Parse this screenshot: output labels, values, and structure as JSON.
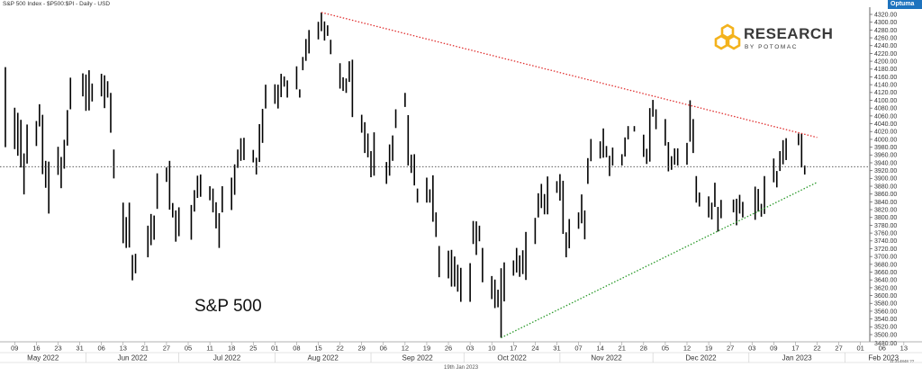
{
  "header": {
    "title": "S&P 500 Index - $P500:$PI - Daily - USD"
  },
  "brand_badge": "Optuma",
  "logo": {
    "main": "RESEARCH",
    "sub": "BY POTOMAC"
  },
  "chart_label": "S&P 500",
  "footer": {
    "date": "19th Jan 2023",
    "info": "11.314848 ??"
  },
  "colors": {
    "bars": "#000000",
    "resistance": "#e03030",
    "support": "#2a9a2a",
    "reference": "#444444",
    "logo_gold": "#f3b21c"
  },
  "chart_data": {
    "type": "ohlc",
    "title": "S&P 500 Index - $P500:$PI - Daily - USD",
    "ylim": [
      3500,
      4320
    ],
    "y_ticks": [
      "4320.00",
      "4300.00",
      "4280.00",
      "4260.00",
      "4240.00",
      "4220.00",
      "4200.00",
      "4180.00",
      "4160.00",
      "4140.00",
      "4120.00",
      "4100.00",
      "4080.00",
      "4060.00",
      "4040.00",
      "4020.00",
      "4000.00",
      "3980.00",
      "3960.00",
      "3940.00",
      "3920.00",
      "3900.00",
      "3880.00",
      "3860.00",
      "3840.00",
      "3820.00",
      "3800.00",
      "3780.00",
      "3760.00",
      "3740.00",
      "3720.00",
      "3700.00",
      "3680.00",
      "3660.00",
      "3640.00",
      "3620.00",
      "3600.00",
      "3580.00",
      "3560.00",
      "3540.00",
      "3520.00",
      "3500.00"
    ],
    "bottom_y_label": "3480.00",
    "x_day_labels": [
      "09",
      "16",
      "23",
      "31",
      "06",
      "13",
      "21",
      "27",
      "05",
      "11",
      "18",
      "25",
      "01",
      "08",
      "15",
      "22",
      "29",
      "06",
      "12",
      "19",
      "26",
      "03",
      "10",
      "17",
      "24",
      "31",
      "07",
      "14",
      "21",
      "28",
      "05",
      "12",
      "19",
      "27",
      "03",
      "09",
      "17",
      "22",
      "27",
      "01",
      "06",
      "13"
    ],
    "x_month_labels": [
      "May 2022",
      "Jun 2022",
      "Jul 2022",
      "Aug 2022",
      "Sep 2022",
      "Oct 2022",
      "Nov 2022",
      "Dec 2022",
      "Jan 2023",
      "Feb 2023"
    ],
    "bars": [
      {
        "date": "2022-05-06",
        "high": 4185,
        "low": 3980
      },
      {
        "date": "2022-05-09",
        "high": 4081,
        "low": 3975
      },
      {
        "date": "2022-05-10",
        "high": 4068,
        "low": 3958
      },
      {
        "date": "2022-05-11",
        "high": 4050,
        "low": 3928
      },
      {
        "date": "2022-05-12",
        "high": 3964,
        "low": 3859
      },
      {
        "date": "2022-05-13",
        "high": 4038,
        "low": 3938
      },
      {
        "date": "2022-05-16",
        "high": 4047,
        "low": 3983
      },
      {
        "date": "2022-05-17",
        "high": 4090,
        "low": 4033
      },
      {
        "date": "2022-05-18",
        "high": 4063,
        "low": 3911
      },
      {
        "date": "2022-05-19",
        "high": 3945,
        "low": 3876
      },
      {
        "date": "2022-05-20",
        "high": 3943,
        "low": 3810
      },
      {
        "date": "2022-05-23",
        "high": 3981,
        "low": 3909
      },
      {
        "date": "2022-05-24",
        "high": 3955,
        "low": 3875
      },
      {
        "date": "2022-05-25",
        "high": 3999,
        "low": 3925
      },
      {
        "date": "2022-05-26",
        "high": 4075,
        "low": 3984
      },
      {
        "date": "2022-05-27",
        "high": 4158,
        "low": 4077
      },
      {
        "date": "2022-05-31",
        "high": 4169,
        "low": 4110
      },
      {
        "date": "2022-06-01",
        "high": 4166,
        "low": 4073
      },
      {
        "date": "2022-06-02",
        "high": 4177,
        "low": 4074
      },
      {
        "date": "2022-06-03",
        "high": 4143,
        "low": 4097
      },
      {
        "date": "2022-06-06",
        "high": 4168,
        "low": 4110
      },
      {
        "date": "2022-06-07",
        "high": 4164,
        "low": 4080
      },
      {
        "date": "2022-06-08",
        "high": 4149,
        "low": 4107
      },
      {
        "date": "2022-06-09",
        "high": 4119,
        "low": 4017
      },
      {
        "date": "2022-06-10",
        "high": 3974,
        "low": 3900
      },
      {
        "date": "2022-06-13",
        "high": 3838,
        "low": 3734
      },
      {
        "date": "2022-06-14",
        "high": 3801,
        "low": 3722
      },
      {
        "date": "2022-06-15",
        "high": 3838,
        "low": 3723
      },
      {
        "date": "2022-06-16",
        "high": 3704,
        "low": 3639
      },
      {
        "date": "2022-06-17",
        "high": 3707,
        "low": 3657
      },
      {
        "date": "2022-06-21",
        "high": 3779,
        "low": 3698
      },
      {
        "date": "2022-06-22",
        "high": 3809,
        "low": 3729
      },
      {
        "date": "2022-06-23",
        "high": 3805,
        "low": 3743
      },
      {
        "date": "2022-06-24",
        "high": 3913,
        "low": 3822
      },
      {
        "date": "2022-06-27",
        "high": 3928,
        "low": 3891
      },
      {
        "date": "2022-06-28",
        "high": 3945,
        "low": 3820
      },
      {
        "date": "2022-06-29",
        "high": 3837,
        "low": 3800
      },
      {
        "date": "2022-06-30",
        "high": 3818,
        "low": 3738
      },
      {
        "date": "2022-07-01",
        "high": 3826,
        "low": 3752
      },
      {
        "date": "2022-07-05",
        "high": 3832,
        "low": 3743
      },
      {
        "date": "2022-07-06",
        "high": 3870,
        "low": 3815
      },
      {
        "date": "2022-07-07",
        "high": 3907,
        "low": 3850
      },
      {
        "date": "2022-07-08",
        "high": 3910,
        "low": 3853
      },
      {
        "date": "2022-07-11",
        "high": 3880,
        "low": 3844
      },
      {
        "date": "2022-07-12",
        "high": 3874,
        "low": 3813
      },
      {
        "date": "2022-07-13",
        "high": 3839,
        "low": 3772
      },
      {
        "date": "2022-07-14",
        "high": 3811,
        "low": 3722
      },
      {
        "date": "2022-07-15",
        "high": 3880,
        "low": 3813
      },
      {
        "date": "2022-07-18",
        "high": 3902,
        "low": 3819
      },
      {
        "date": "2022-07-19",
        "high": 3936,
        "low": 3858
      },
      {
        "date": "2022-07-20",
        "high": 3974,
        "low": 3927
      },
      {
        "date": "2022-07-21",
        "high": 4003,
        "low": 3945
      },
      {
        "date": "2022-07-22",
        "high": 4004,
        "low": 3947
      },
      {
        "date": "2022-07-25",
        "high": 3973,
        "low": 3941
      },
      {
        "date": "2022-07-26",
        "high": 3953,
        "low": 3910
      },
      {
        "date": "2022-07-27",
        "high": 4039,
        "low": 3942
      },
      {
        "date": "2022-07-28",
        "high": 4078,
        "low": 3991
      },
      {
        "date": "2022-07-29",
        "high": 4140,
        "low": 4079
      },
      {
        "date": "2022-08-01",
        "high": 4141,
        "low": 4091
      },
      {
        "date": "2022-08-02",
        "high": 4140,
        "low": 4079
      },
      {
        "date": "2022-08-03",
        "high": 4168,
        "low": 4108
      },
      {
        "date": "2022-08-04",
        "high": 4161,
        "low": 4135
      },
      {
        "date": "2022-08-05",
        "high": 4151,
        "low": 4107
      },
      {
        "date": "2022-08-08",
        "high": 4187,
        "low": 4128
      },
      {
        "date": "2022-08-09",
        "high": 4128,
        "low": 4107
      },
      {
        "date": "2022-08-10",
        "high": 4211,
        "low": 4177
      },
      {
        "date": "2022-08-11",
        "high": 4257,
        "low": 4201
      },
      {
        "date": "2022-08-12",
        "high": 4280,
        "low": 4220
      },
      {
        "date": "2022-08-15",
        "high": 4301,
        "low": 4256
      },
      {
        "date": "2022-08-16",
        "high": 4325,
        "low": 4277
      },
      {
        "date": "2022-08-17",
        "high": 4302,
        "low": 4253
      },
      {
        "date": "2022-08-18",
        "high": 4292,
        "low": 4265
      },
      {
        "date": "2022-08-19",
        "high": 4255,
        "low": 4218
      },
      {
        "date": "2022-08-22",
        "high": 4195,
        "low": 4130
      },
      {
        "date": "2022-08-23",
        "high": 4159,
        "low": 4124
      },
      {
        "date": "2022-08-24",
        "high": 4156,
        "low": 4119
      },
      {
        "date": "2022-08-25",
        "high": 4200,
        "low": 4147
      },
      {
        "date": "2022-08-26",
        "high": 4204,
        "low": 4057
      },
      {
        "date": "2022-08-29",
        "high": 4063,
        "low": 4017
      },
      {
        "date": "2022-08-30",
        "high": 4044,
        "low": 3965
      },
      {
        "date": "2022-08-31",
        "high": 4015,
        "low": 3954
      },
      {
        "date": "2022-09-01",
        "high": 3970,
        "low": 3903
      },
      {
        "date": "2022-09-02",
        "high": 4018,
        "low": 3907
      },
      {
        "date": "2022-09-06",
        "high": 3942,
        "low": 3886
      },
      {
        "date": "2022-09-07",
        "high": 3987,
        "low": 3907
      },
      {
        "date": "2022-09-08",
        "high": 4010,
        "low": 3945
      },
      {
        "date": "2022-09-09",
        "high": 4077,
        "low": 4029
      },
      {
        "date": "2022-09-12",
        "high": 4119,
        "low": 4083
      },
      {
        "date": "2022-09-13",
        "high": 4062,
        "low": 3933
      },
      {
        "date": "2022-09-14",
        "high": 3961,
        "low": 3914
      },
      {
        "date": "2022-09-15",
        "high": 3962,
        "low": 3882
      },
      {
        "date": "2022-09-16",
        "high": 3874,
        "low": 3838
      },
      {
        "date": "2022-09-19",
        "high": 3902,
        "low": 3838
      },
      {
        "date": "2022-09-20",
        "high": 3872,
        "low": 3838
      },
      {
        "date": "2022-09-21",
        "high": 3908,
        "low": 3789
      },
      {
        "date": "2022-09-22",
        "high": 3813,
        "low": 3750
      },
      {
        "date": "2022-09-23",
        "high": 3727,
        "low": 3647
      },
      {
        "date": "2022-09-26",
        "high": 3715,
        "low": 3644
      },
      {
        "date": "2022-09-27",
        "high": 3717,
        "low": 3623
      },
      {
        "date": "2022-09-28",
        "high": 3700,
        "low": 3623
      },
      {
        "date": "2022-09-29",
        "high": 3679,
        "low": 3610
      },
      {
        "date": "2022-09-30",
        "high": 3671,
        "low": 3584
      },
      {
        "date": "2022-10-03",
        "high": 3683,
        "low": 3584
      },
      {
        "date": "2022-10-04",
        "high": 3791,
        "low": 3732
      },
      {
        "date": "2022-10-05",
        "high": 3790,
        "low": 3704
      },
      {
        "date": "2022-10-06",
        "high": 3779,
        "low": 3739
      },
      {
        "date": "2022-10-07",
        "high": 3722,
        "low": 3634
      },
      {
        "date": "2022-10-10",
        "high": 3650,
        "low": 3591
      },
      {
        "date": "2022-10-11",
        "high": 3641,
        "low": 3568
      },
      {
        "date": "2022-10-12",
        "high": 3615,
        "low": 3570
      },
      {
        "date": "2022-10-13",
        "high": 3670,
        "low": 3492
      },
      {
        "date": "2022-10-14",
        "high": 3685,
        "low": 3585
      },
      {
        "date": "2022-10-17",
        "high": 3690,
        "low": 3651
      },
      {
        "date": "2022-10-18",
        "high": 3722,
        "low": 3659
      },
      {
        "date": "2022-10-19",
        "high": 3703,
        "low": 3648
      },
      {
        "date": "2022-10-20",
        "high": 3716,
        "low": 3655
      },
      {
        "date": "2022-10-21",
        "high": 3763,
        "low": 3640
      },
      {
        "date": "2022-10-24",
        "high": 3799,
        "low": 3732
      },
      {
        "date": "2022-10-25",
        "high": 3862,
        "low": 3800
      },
      {
        "date": "2022-10-26",
        "high": 3886,
        "low": 3824
      },
      {
        "date": "2022-10-27",
        "high": 3860,
        "low": 3808
      },
      {
        "date": "2022-10-28",
        "high": 3905,
        "low": 3808
      },
      {
        "date": "2022-10-31",
        "high": 3893,
        "low": 3863
      },
      {
        "date": "2022-11-01",
        "high": 3911,
        "low": 3843
      },
      {
        "date": "2022-11-02",
        "high": 3894,
        "low": 3758
      },
      {
        "date": "2022-11-03",
        "high": 3762,
        "low": 3698
      },
      {
        "date": "2022-11-04",
        "high": 3796,
        "low": 3721
      },
      {
        "date": "2022-11-07",
        "high": 3813,
        "low": 3771
      },
      {
        "date": "2022-11-08",
        "high": 3859,
        "low": 3785
      },
      {
        "date": "2022-11-09",
        "high": 3818,
        "low": 3744
      },
      {
        "date": "2022-11-10",
        "high": 3952,
        "low": 3886
      },
      {
        "date": "2022-11-11",
        "high": 4001,
        "low": 3944
      },
      {
        "date": "2022-11-14",
        "high": 3995,
        "low": 3951
      },
      {
        "date": "2022-11-15",
        "high": 4028,
        "low": 3953
      },
      {
        "date": "2022-11-16",
        "high": 3983,
        "low": 3954
      },
      {
        "date": "2022-11-17",
        "high": 3958,
        "low": 3906
      },
      {
        "date": "2022-11-18",
        "high": 3979,
        "low": 3933
      },
      {
        "date": "2022-11-21",
        "high": 3962,
        "low": 3933
      },
      {
        "date": "2022-11-22",
        "high": 4005,
        "low": 3956
      },
      {
        "date": "2022-11-23",
        "high": 4034,
        "low": 4000
      },
      {
        "date": "2022-11-25",
        "high": 4034,
        "low": 4020
      },
      {
        "date": "2022-11-28",
        "high": 4012,
        "low": 3955
      },
      {
        "date": "2022-11-29",
        "high": 3976,
        "low": 3937
      },
      {
        "date": "2022-11-30",
        "high": 4080,
        "low": 3943
      },
      {
        "date": "2022-12-01",
        "high": 4101,
        "low": 4058
      },
      {
        "date": "2022-12-02",
        "high": 4077,
        "low": 4026
      },
      {
        "date": "2022-12-05",
        "high": 4052,
        "low": 3984
      },
      {
        "date": "2022-12-06",
        "high": 3993,
        "low": 3918
      },
      {
        "date": "2022-12-07",
        "high": 3957,
        "low": 3922
      },
      {
        "date": "2022-12-08",
        "high": 3977,
        "low": 3935
      },
      {
        "date": "2022-12-09",
        "high": 3977,
        "low": 3933
      },
      {
        "date": "2022-12-12",
        "high": 3991,
        "low": 3935
      },
      {
        "date": "2022-12-13",
        "high": 4100,
        "low": 3994
      },
      {
        "date": "2022-12-14",
        "high": 4052,
        "low": 3965
      },
      {
        "date": "2022-12-15",
        "high": 3906,
        "low": 3838
      },
      {
        "date": "2022-12-16",
        "high": 3864,
        "low": 3828
      },
      {
        "date": "2022-12-19",
        "high": 3854,
        "low": 3800
      },
      {
        "date": "2022-12-20",
        "high": 3838,
        "low": 3795
      },
      {
        "date": "2022-12-21",
        "high": 3889,
        "low": 3827
      },
      {
        "date": "2022-12-22",
        "high": 3827,
        "low": 3764
      },
      {
        "date": "2022-12-23",
        "high": 3845,
        "low": 3798
      },
      {
        "date": "2022-12-27",
        "high": 3846,
        "low": 3813
      },
      {
        "date": "2022-12-28",
        "high": 3848,
        "low": 3780
      },
      {
        "date": "2022-12-29",
        "high": 3858,
        "low": 3810
      },
      {
        "date": "2022-12-30",
        "high": 3840,
        "low": 3800
      },
      {
        "date": "2023-01-03",
        "high": 3879,
        "low": 3794
      },
      {
        "date": "2023-01-04",
        "high": 3873,
        "low": 3815
      },
      {
        "date": "2023-01-05",
        "high": 3835,
        "low": 3802
      },
      {
        "date": "2023-01-06",
        "high": 3906,
        "low": 3809
      },
      {
        "date": "2023-01-09",
        "high": 3951,
        "low": 3890
      },
      {
        "date": "2023-01-10",
        "high": 3919,
        "low": 3877
      },
      {
        "date": "2023-01-11",
        "high": 3970,
        "low": 3919
      },
      {
        "date": "2023-01-12",
        "high": 3998,
        "low": 3936
      },
      {
        "date": "2023-01-13",
        "high": 4003,
        "low": 3947
      },
      {
        "date": "2023-01-17",
        "high": 4015,
        "low": 3985
      },
      {
        "date": "2023-01-18",
        "high": 4015,
        "low": 3928
      },
      {
        "date": "2023-01-19",
        "high": 3933,
        "low": 3910
      }
    ],
    "trendlines": [
      {
        "name": "resistance",
        "style": "dotted",
        "color": "#e03030",
        "start": {
          "date": "2022-08-16",
          "value": 4325
        },
        "end": {
          "date": "2023-01-23",
          "value": 4005
        }
      },
      {
        "name": "support",
        "style": "dotted",
        "color": "#2a9a2a",
        "start": {
          "date": "2022-10-13",
          "value": 3492
        },
        "end": {
          "date": "2023-01-23",
          "value": 3890
        }
      },
      {
        "name": "reference",
        "style": "dotted",
        "color": "#444444",
        "value": 3930
      }
    ],
    "grid": false,
    "y_axis_position": "right"
  }
}
